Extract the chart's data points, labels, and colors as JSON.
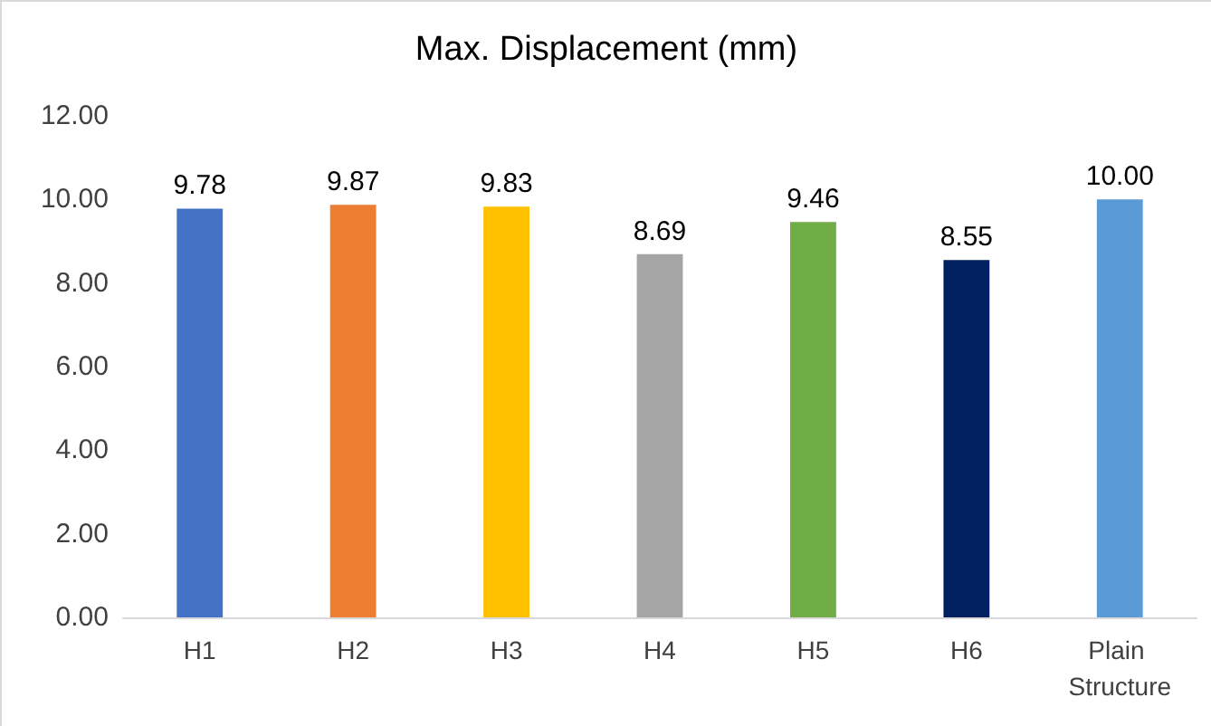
{
  "chart_data": {
    "type": "bar",
    "title": "Max. Displacement (mm)",
    "categories": [
      "H1",
      "H2",
      "H3",
      "H4",
      "H5",
      "H6",
      "Plain Structure"
    ],
    "values": [
      9.78,
      9.87,
      9.83,
      8.69,
      9.46,
      8.55,
      10
    ],
    "colors": [
      "#4472c4",
      "#ed7d31",
      "#ffc000",
      "#a5a5a5",
      "#70ad47",
      "#002060",
      "#5b9bd5"
    ],
    "value_labels": [
      "9.78",
      "9.87",
      "9.83",
      "8.69",
      "9.46",
      "8.55",
      "10.00"
    ],
    "ylim": [
      0,
      12
    ],
    "yticks": [
      {
        "value": 0,
        "label": "0.00"
      },
      {
        "value": 2,
        "label": "2.00"
      },
      {
        "value": 4,
        "label": "4.00"
      },
      {
        "value": 6,
        "label": "6.00"
      },
      {
        "value": 8,
        "label": "8.00"
      },
      {
        "value": 10,
        "label": "10.00"
      },
      {
        "value": 12,
        "label": "12.00"
      }
    ],
    "grid": false
  }
}
